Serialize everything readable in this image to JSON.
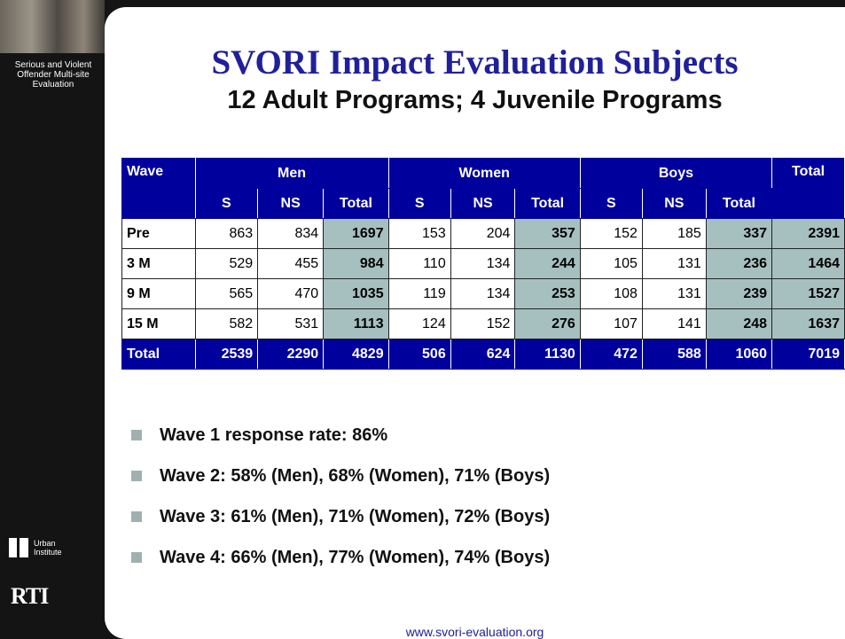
{
  "sidebar": {
    "tagline": "Serious and Violent Offender Multi-site Evaluation",
    "urban_logo": "Urban Institute",
    "rti_logo": "RTI"
  },
  "header": {
    "title": "SVORI Impact Evaluation Subjects",
    "subtitle": "12 Adult Programs; 4 Juvenile Programs"
  },
  "table": {
    "group_headers": [
      "Wave",
      "Men",
      "Women",
      "Boys",
      "Total"
    ],
    "sub_headers": [
      "S",
      "NS",
      "Total",
      "S",
      "NS",
      "Total",
      "S",
      "NS",
      "Total"
    ],
    "rows": [
      [
        "Pre",
        863,
        834,
        1697,
        153,
        204,
        357,
        152,
        185,
        337,
        2391
      ],
      [
        "3 M",
        529,
        455,
        984,
        110,
        134,
        244,
        105,
        131,
        236,
        1464
      ],
      [
        "9 M",
        565,
        470,
        1035,
        119,
        134,
        253,
        108,
        131,
        239,
        1527
      ],
      [
        "15 M",
        582,
        531,
        1113,
        124,
        152,
        276,
        107,
        141,
        248,
        1637
      ]
    ],
    "total_row": [
      "Total",
      2539,
      2290,
      4829,
      506,
      624,
      1130,
      472,
      588,
      1060,
      7019
    ]
  },
  "bullets": [
    "Wave 1 response rate: 86%",
    "Wave 2: 58% (Men), 68% (Women), 71% (Boys)",
    "Wave 3: 61% (Men), 71% (Women), 72% (Boys)",
    "Wave 4: 66% (Men), 77% (Women), 74% (Boys)"
  ],
  "footer": {
    "url": "www.svori-evaluation.org"
  }
}
